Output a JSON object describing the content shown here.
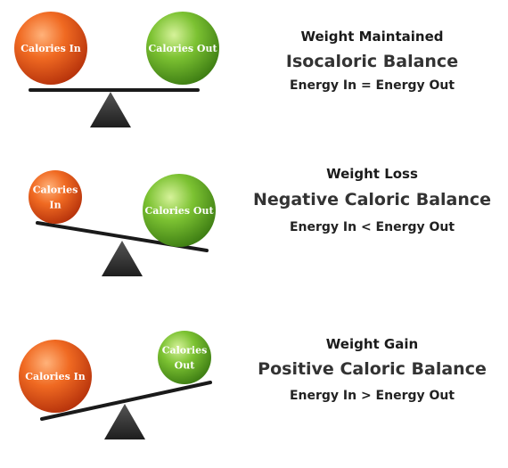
{
  "colors": {
    "calories_in": "#e8531b",
    "calories_out": "#6fb52c",
    "beam": "#1a1a1a",
    "fulcrum": "#2b2b2b"
  },
  "panels": [
    {
      "state": "Weight Maintained",
      "balance": "Isocaloric Balance",
      "equation": "Energy In = Energy Out",
      "ball_in": [
        "Calories In"
      ],
      "ball_out": [
        "Calories Out"
      ]
    },
    {
      "state": "Weight Loss",
      "balance": "Negative Caloric Balance",
      "equation": "Energy In < Energy Out",
      "ball_in": [
        "Calories",
        "In"
      ],
      "ball_out": [
        "Calories Out"
      ]
    },
    {
      "state": "Weight Gain",
      "balance": "Positive Caloric Balance",
      "equation": "Energy In > Energy Out",
      "ball_in": [
        "Calories In"
      ],
      "ball_out": [
        "Calories",
        "Out"
      ]
    }
  ]
}
